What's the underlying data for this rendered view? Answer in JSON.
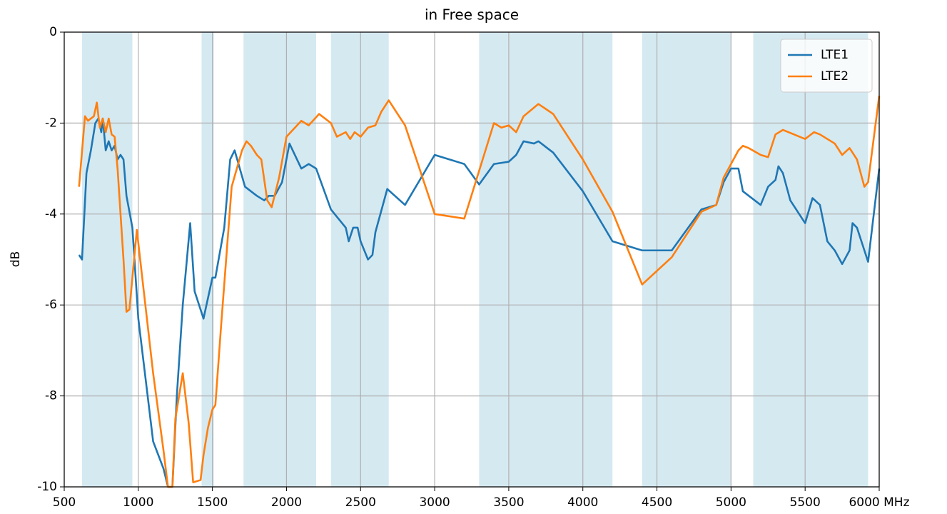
{
  "chart_data": {
    "type": "line",
    "title": "in Free space",
    "y_label": "dB",
    "xlim": [
      500,
      6000
    ],
    "ylim": [
      -10,
      0
    ],
    "xticks": [
      500,
      1000,
      1500,
      2000,
      2500,
      3000,
      3500,
      4000,
      4500,
      5000,
      5500,
      {
        "value": 6000,
        "label": "6000 MHz"
      }
    ],
    "yticks": [
      0,
      -2,
      -4,
      -6,
      -8,
      -10
    ],
    "grid": true,
    "legend": "upper right",
    "band_color": "#d5e9f1",
    "shaded_bands": [
      [
        620,
        960
      ],
      [
        1427,
        1510
      ],
      [
        1710,
        2200
      ],
      [
        2300,
        2690
      ],
      [
        3300,
        4200
      ],
      [
        4400,
        5000
      ],
      [
        5150,
        5925
      ]
    ],
    "series": [
      {
        "name": "LTE1",
        "color": "#1f77b4",
        "x": [
          600,
          620,
          650,
          680,
          710,
          730,
          750,
          760,
          780,
          800,
          820,
          840,
          860,
          880,
          900,
          920,
          960,
          1000,
          1100,
          1170,
          1200,
          1230,
          1260,
          1300,
          1350,
          1380,
          1440,
          1460,
          1500,
          1520,
          1580,
          1620,
          1650,
          1720,
          1760,
          1800,
          1850,
          1880,
          1920,
          1970,
          2020,
          2100,
          2150,
          2200,
          2300,
          2350,
          2400,
          2420,
          2450,
          2480,
          2500,
          2550,
          2580,
          2600,
          2680,
          2800,
          3000,
          3200,
          3300,
          3400,
          3500,
          3550,
          3600,
          3670,
          3700,
          3800,
          4000,
          4200,
          4400,
          4600,
          4800,
          4900,
          4950,
          5000,
          5050,
          5080,
          5200,
          5250,
          5300,
          5320,
          5350,
          5400,
          5500,
          5550,
          5600,
          5650,
          5700,
          5750,
          5800,
          5820,
          5850,
          5900,
          5925,
          6000
        ],
        "values": [
          -4.9,
          -5.0,
          -3.1,
          -2.6,
          -2.0,
          -1.9,
          -2.2,
          -1.9,
          -2.6,
          -2.4,
          -2.6,
          -2.5,
          -2.8,
          -2.7,
          -2.8,
          -3.6,
          -4.3,
          -6.3,
          -9.0,
          -9.6,
          -10,
          -10,
          -8.0,
          -6.0,
          -4.2,
          -5.7,
          -6.3,
          -6.0,
          -5.4,
          -5.4,
          -4.3,
          -2.8,
          -2.6,
          -3.4,
          -3.5,
          -3.6,
          -3.7,
          -3.6,
          -3.6,
          -3.3,
          -2.45,
          -3.0,
          -2.9,
          -3.0,
          -3.9,
          -4.1,
          -4.3,
          -4.6,
          -4.3,
          -4.3,
          -4.6,
          -5.0,
          -4.9,
          -4.4,
          -3.45,
          -3.8,
          -2.7,
          -2.9,
          -3.35,
          -2.9,
          -2.85,
          -2.7,
          -2.4,
          -2.45,
          -2.4,
          -2.65,
          -3.5,
          -4.6,
          -4.8,
          -4.8,
          -3.9,
          -3.8,
          -3.3,
          -3.0,
          -3.0,
          -3.5,
          -3.8,
          -3.4,
          -3.25,
          -2.95,
          -3.1,
          -3.7,
          -4.2,
          -3.65,
          -3.8,
          -4.6,
          -4.8,
          -5.1,
          -4.8,
          -4.2,
          -4.3,
          -4.8,
          -5.05,
          -3.0
        ]
      },
      {
        "name": "LTE2",
        "color": "#ff7f0e",
        "x": [
          600,
          640,
          660,
          700,
          720,
          740,
          760,
          780,
          800,
          820,
          840,
          860,
          900,
          920,
          940,
          960,
          990,
          1030,
          1100,
          1170,
          1200,
          1230,
          1250,
          1300,
          1340,
          1370,
          1420,
          1440,
          1470,
          1500,
          1520,
          1560,
          1630,
          1700,
          1730,
          1760,
          1800,
          1830,
          1870,
          1900,
          1950,
          2000,
          2100,
          2150,
          2220,
          2300,
          2340,
          2400,
          2430,
          2460,
          2500,
          2550,
          2600,
          2640,
          2690,
          2800,
          3000,
          3200,
          3400,
          3450,
          3500,
          3550,
          3600,
          3700,
          3800,
          4000,
          4200,
          4400,
          4600,
          4800,
          4900,
          4950,
          5000,
          5050,
          5080,
          5120,
          5200,
          5250,
          5300,
          5350,
          5500,
          5560,
          5600,
          5650,
          5700,
          5750,
          5800,
          5850,
          5900,
          5925,
          6000
        ],
        "values": [
          -3.4,
          -1.85,
          -1.95,
          -1.85,
          -1.55,
          -2.1,
          -1.9,
          -2.2,
          -1.9,
          -2.25,
          -2.3,
          -3.0,
          -5.0,
          -6.15,
          -6.1,
          -5.4,
          -4.35,
          -5.5,
          -7.5,
          -9.2,
          -10,
          -10,
          -8.5,
          -7.5,
          -8.6,
          -9.9,
          -9.85,
          -9.3,
          -8.7,
          -8.3,
          -8.2,
          -6.4,
          -3.4,
          -2.6,
          -2.4,
          -2.5,
          -2.7,
          -2.8,
          -3.7,
          -3.85,
          -3.2,
          -2.3,
          -1.95,
          -2.05,
          -1.8,
          -2.0,
          -2.3,
          -2.2,
          -2.35,
          -2.2,
          -2.3,
          -2.1,
          -2.05,
          -1.75,
          -1.5,
          -2.05,
          -4.0,
          -4.1,
          -2.0,
          -2.1,
          -2.05,
          -2.2,
          -1.85,
          -1.58,
          -1.8,
          -2.8,
          -3.95,
          -5.55,
          -4.95,
          -3.95,
          -3.8,
          -3.2,
          -2.9,
          -2.6,
          -2.5,
          -2.55,
          -2.7,
          -2.75,
          -2.25,
          -2.15,
          -2.35,
          -2.2,
          -2.25,
          -2.35,
          -2.45,
          -2.7,
          -2.55,
          -2.8,
          -3.4,
          -3.3,
          -1.4
        ]
      }
    ]
  }
}
